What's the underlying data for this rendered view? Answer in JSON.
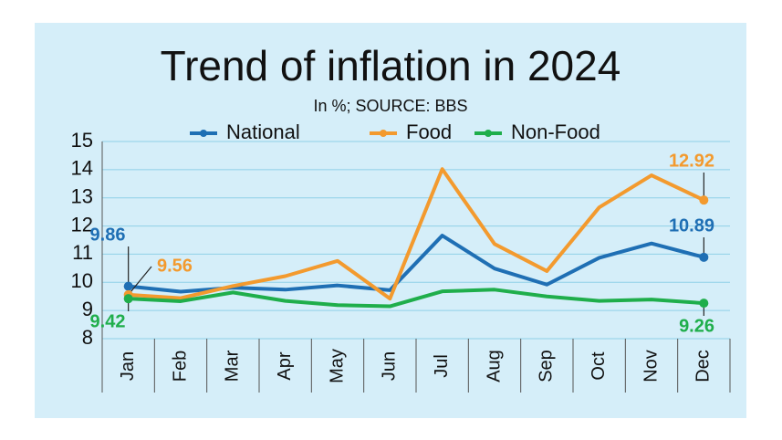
{
  "chart_data": {
    "type": "line",
    "title": "Trend of inflation in 2024",
    "subtitle": "In %; SOURCE: BBS",
    "categories": [
      "Jan",
      "Feb",
      "Mar",
      "Apr",
      "May",
      "Jun",
      "Jul",
      "Aug",
      "Sep",
      "Oct",
      "Nov",
      "Dec"
    ],
    "series": [
      {
        "name": "National",
        "color": "#1f6fb4",
        "values": [
          9.86,
          9.67,
          9.81,
          9.74,
          9.89,
          9.72,
          11.66,
          10.49,
          9.92,
          10.87,
          11.38,
          10.89
        ]
      },
      {
        "name": "Food",
        "color": "#f39a2e",
        "values": [
          9.56,
          9.44,
          9.87,
          10.22,
          10.76,
          9.42,
          14.02,
          11.36,
          10.4,
          12.66,
          13.8,
          12.92
        ]
      },
      {
        "name": "Non-Food",
        "color": "#1fae4b",
        "values": [
          9.42,
          9.33,
          9.64,
          9.34,
          9.19,
          9.15,
          9.68,
          9.74,
          9.5,
          9.34,
          9.39,
          9.26
        ]
      }
    ],
    "ylim": [
      8,
      15
    ],
    "yticks": [
      8,
      9,
      10,
      11,
      12,
      13,
      14,
      15
    ],
    "grid": true
  }
}
